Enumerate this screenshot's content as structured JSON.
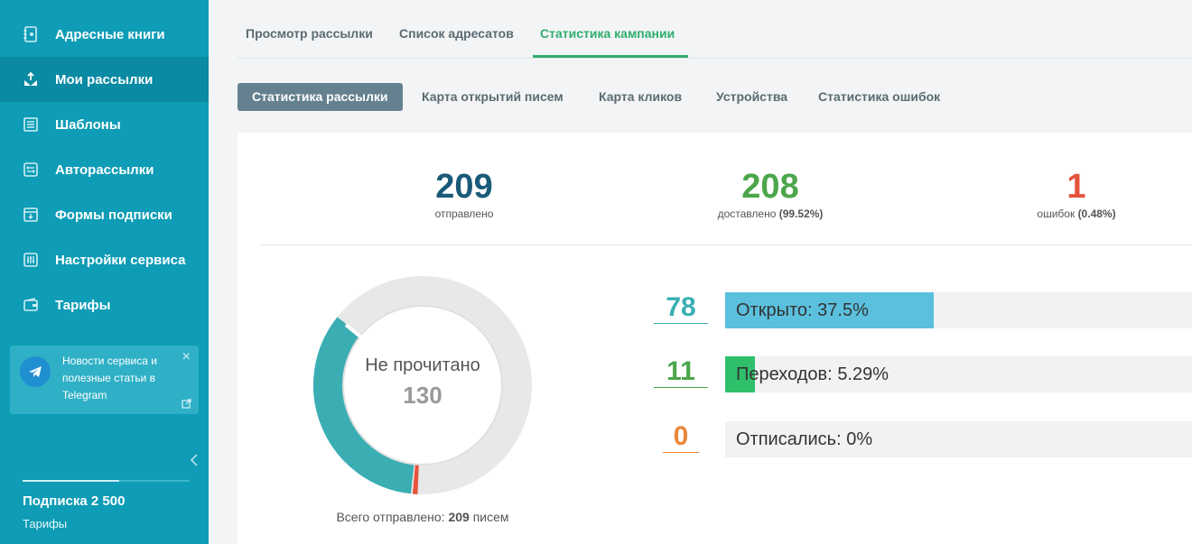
{
  "sidebar": {
    "items": [
      {
        "label": "Адресные книги",
        "icon": "address-book-icon"
      },
      {
        "label": "Мои рассылки",
        "icon": "mailing-icon"
      },
      {
        "label": "Шаблоны",
        "icon": "templates-icon"
      },
      {
        "label": "Авторассылки",
        "icon": "automation-icon"
      },
      {
        "label": "Формы подписки",
        "icon": "subscribe-form-icon"
      },
      {
        "label": "Настройки сервиса",
        "icon": "settings-sliders-icon"
      },
      {
        "label": "Тарифы",
        "icon": "wallet-icon"
      }
    ],
    "telegram_card": {
      "text": "Новости сервиса и полезные статьи в Telegram"
    },
    "plan": {
      "name": "Подписка 2 500",
      "link": "Тарифы"
    }
  },
  "tabs": [
    {
      "label": "Просмотр рассылки"
    },
    {
      "label": "Список адресатов"
    },
    {
      "label": "Статистика кампании"
    }
  ],
  "subtabs": [
    {
      "label": "Статистика рассылки"
    },
    {
      "label": "Карта открытий писем"
    },
    {
      "label": "Карта кликов"
    },
    {
      "label": "Устройства"
    },
    {
      "label": "Статистика ошибок"
    }
  ],
  "summary": {
    "sent": {
      "value": "209",
      "label": "отправлено"
    },
    "delivered": {
      "value": "208",
      "label": "доставлено",
      "pct": "(99.52%)"
    },
    "errors": {
      "value": "1",
      "label": "ошибок",
      "pct": "(0.48%)"
    }
  },
  "donut": {
    "center_label": "Не прочитано",
    "center_value": "130",
    "caption_prefix": "Всего отправлено:",
    "caption_count": "209",
    "caption_suffix": "писем"
  },
  "metrics": [
    {
      "value": "78",
      "label": "Открыто:",
      "percent": "37.5%",
      "fraction": 0.375
    },
    {
      "value": "11",
      "label": "Переходов:",
      "percent": "5.29%",
      "fraction": 0.0529
    },
    {
      "value": "0",
      "label": "Отписались:",
      "percent": "0%",
      "fraction": 0
    }
  ],
  "colors": {
    "sidebar": "#0e9cb6",
    "accent_green": "#2fae6e",
    "sent_blue": "#1a5a78",
    "delivered_green": "#4ca64a",
    "error_red": "#e5533d",
    "opened_teal": "#3aaeb3",
    "opened_bar": "#5bc0de",
    "clicks_bar": "#2fbf6b",
    "unsub_orange": "#e8883a",
    "unread_gray": "#e8e8e8"
  }
}
